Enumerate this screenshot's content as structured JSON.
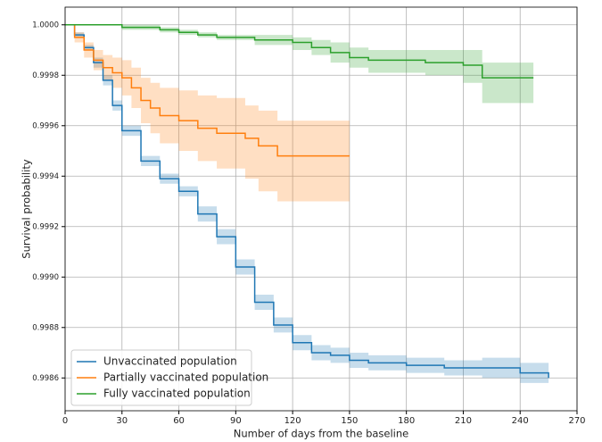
{
  "chart_data": {
    "type": "survival",
    "x_label": "Number of days from the baseline",
    "y_label": "Survival probability",
    "xlim": [
      0,
      270
    ],
    "xticks": [
      0,
      30,
      60,
      90,
      120,
      150,
      180,
      210,
      240,
      270
    ],
    "ylim": [
      0.99847,
      1.00007
    ],
    "yticks": [
      {
        "value": 0.9986,
        "label": "0.9986"
      },
      {
        "value": 0.9988,
        "label": "0.9988"
      },
      {
        "value": 0.999,
        "label": "0.9990"
      },
      {
        "value": 0.9992,
        "label": "0.9992"
      },
      {
        "value": 0.9994,
        "label": "0.9994"
      },
      {
        "value": 0.9996,
        "label": "0.9996"
      },
      {
        "value": 0.9998,
        "label": "0.9998"
      },
      {
        "value": 1.0,
        "label": "1.0000"
      }
    ],
    "grid": true,
    "legend": "lower left",
    "series": [
      {
        "name": "Unvaccinated population",
        "color": "#1f77b4",
        "x": [
          0,
          5,
          10,
          15,
          20,
          25,
          30,
          40,
          50,
          60,
          70,
          80,
          90,
          100,
          110,
          120,
          130,
          140,
          150,
          160,
          180,
          200,
          220,
          240,
          255
        ],
        "values": [
          1.0,
          0.99996,
          0.99991,
          0.99985,
          0.99978,
          0.99968,
          0.99958,
          0.99946,
          0.99939,
          0.99934,
          0.99925,
          0.99916,
          0.99904,
          0.9989,
          0.99881,
          0.99874,
          0.9987,
          0.99869,
          0.99867,
          0.99866,
          0.99865,
          0.99864,
          0.99864,
          0.99862,
          0.9986
        ],
        "lower": [
          1.0,
          0.99995,
          0.9999,
          0.99983,
          0.99976,
          0.99966,
          0.99956,
          0.99944,
          0.99937,
          0.99932,
          0.99922,
          0.99913,
          0.99901,
          0.99887,
          0.99878,
          0.99871,
          0.99867,
          0.99866,
          0.99864,
          0.99863,
          0.99862,
          0.99861,
          0.9986,
          0.99858,
          0.99856
        ],
        "upper": [
          1.0,
          0.99997,
          0.99992,
          0.99987,
          0.9998,
          0.9997,
          0.9996,
          0.99948,
          0.99941,
          0.99936,
          0.99928,
          0.99919,
          0.99907,
          0.99893,
          0.99884,
          0.99877,
          0.99873,
          0.99872,
          0.9987,
          0.99869,
          0.99868,
          0.99867,
          0.99868,
          0.99866,
          0.99864
        ]
      },
      {
        "name": "Partially vaccinated population",
        "color": "#ff7f0e",
        "x": [
          0,
          5,
          10,
          15,
          20,
          25,
          30,
          35,
          40,
          45,
          50,
          60,
          70,
          80,
          95,
          102,
          112,
          150
        ],
        "values": [
          1.0,
          0.99995,
          0.9999,
          0.99986,
          0.99983,
          0.99981,
          0.99979,
          0.99975,
          0.9997,
          0.99967,
          0.99964,
          0.99962,
          0.99959,
          0.99957,
          0.99955,
          0.99952,
          0.99948,
          0.99948
        ],
        "lower": [
          1.0,
          0.99993,
          0.99987,
          0.99982,
          0.99978,
          0.99975,
          0.99972,
          0.99967,
          0.99961,
          0.99957,
          0.99953,
          0.9995,
          0.99946,
          0.99943,
          0.99939,
          0.99934,
          0.9993,
          0.9993
        ],
        "upper": [
          1.0,
          0.99997,
          0.99993,
          0.9999,
          0.99988,
          0.99987,
          0.99986,
          0.99983,
          0.99979,
          0.99977,
          0.99975,
          0.99974,
          0.99972,
          0.99971,
          0.99968,
          0.99966,
          0.99962,
          0.99962
        ]
      },
      {
        "name": "Fully vaccinated population",
        "color": "#2ca02c",
        "x": [
          0,
          30,
          50,
          60,
          70,
          80,
          100,
          120,
          130,
          140,
          150,
          160,
          190,
          210,
          220,
          247
        ],
        "values": [
          1.0,
          0.99999,
          0.99998,
          0.99997,
          0.99996,
          0.99995,
          0.99994,
          0.99993,
          0.99991,
          0.99989,
          0.99987,
          0.99986,
          0.99985,
          0.99984,
          0.99979,
          0.99979
        ],
        "lower": [
          1.0,
          0.99998,
          0.99997,
          0.99996,
          0.99995,
          0.99994,
          0.99992,
          0.9999,
          0.99988,
          0.99985,
          0.99983,
          0.99981,
          0.9998,
          0.99977,
          0.99969,
          0.99969
        ],
        "upper": [
          1.0,
          1.0,
          0.99999,
          0.99998,
          0.99997,
          0.99996,
          0.99996,
          0.99995,
          0.99994,
          0.99993,
          0.99991,
          0.9999,
          0.9999,
          0.9999,
          0.99985,
          0.99985
        ]
      }
    ]
  }
}
